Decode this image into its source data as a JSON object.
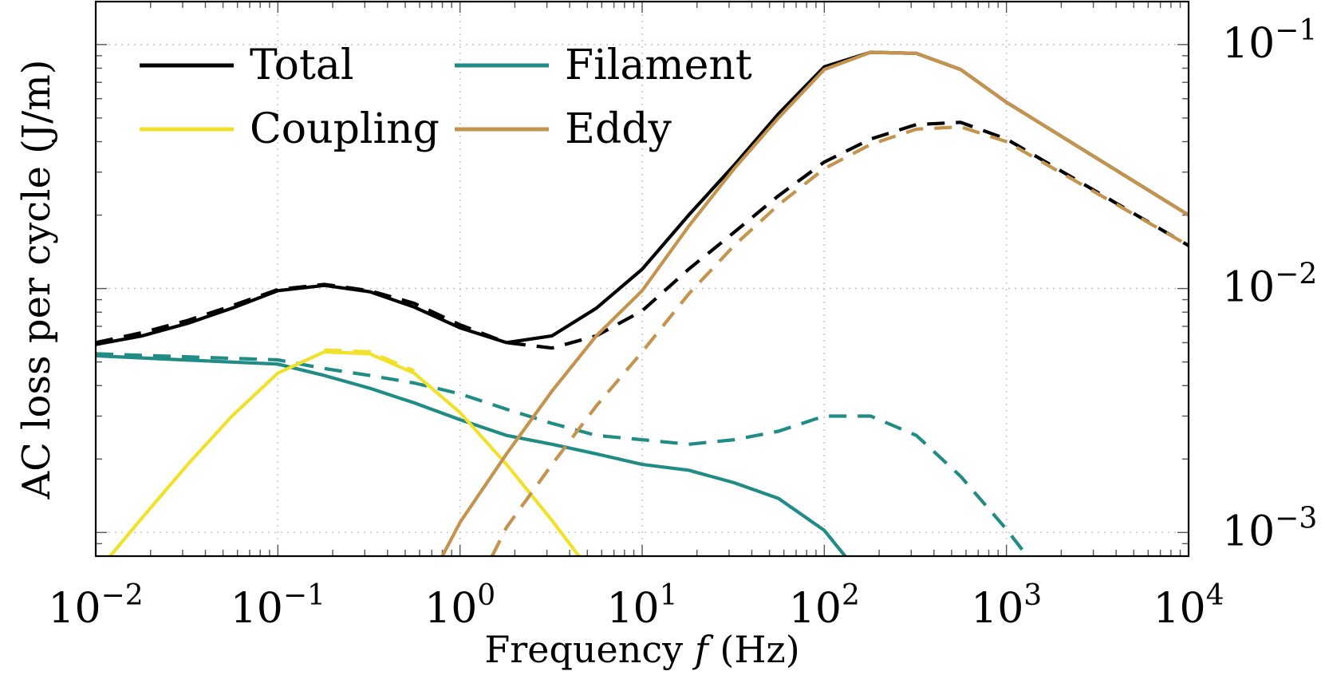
{
  "chart_data": {
    "type": "line",
    "title": "",
    "xlabel": "Frequency f (Hz)",
    "xlabel_parts": {
      "before": "Frequency ",
      "var": "f",
      "after": " (Hz)"
    },
    "ylabel": "AC loss per cycle (J/m)",
    "xscale": "log",
    "yscale": "log",
    "xlim": [
      0.01,
      10000
    ],
    "ylim": [
      0.0008,
      0.15
    ],
    "x_ticks": [
      {
        "value": 0.01,
        "base": "10",
        "exp": "−2"
      },
      {
        "value": 0.1,
        "base": "10",
        "exp": "−1"
      },
      {
        "value": 1,
        "base": "10",
        "exp": "0"
      },
      {
        "value": 10,
        "base": "10",
        "exp": "1"
      },
      {
        "value": 100,
        "base": "10",
        "exp": "2"
      },
      {
        "value": 1000,
        "base": "10",
        "exp": "3"
      },
      {
        "value": 10000,
        "base": "10",
        "exp": "4"
      }
    ],
    "y_ticks": [
      {
        "value": 0.1,
        "base": "10",
        "exp": "−1"
      },
      {
        "value": 0.01,
        "base": "10",
        "exp": "−2"
      },
      {
        "value": 0.001,
        "base": "10",
        "exp": "−3"
      }
    ],
    "y_axis_side": "right",
    "grid": true,
    "legend_position": "top-left",
    "legend": [
      {
        "label": "Total",
        "color": "#000000"
      },
      {
        "label": "Filament",
        "color": "#218c85"
      },
      {
        "label": "Coupling",
        "color": "#f2e12b"
      },
      {
        "label": "Eddy",
        "color": "#c4944f"
      }
    ],
    "series": [
      {
        "name": "Total",
        "style": "solid",
        "color": "#000000",
        "x": [
          0.01,
          0.018,
          0.032,
          0.056,
          0.1,
          0.18,
          0.32,
          0.56,
          1,
          1.8,
          3.2,
          5.6,
          10,
          18,
          32,
          56,
          100,
          180,
          320,
          560,
          1000,
          10000
        ],
        "y": [
          0.0059,
          0.0064,
          0.0072,
          0.0083,
          0.0098,
          0.0103,
          0.0097,
          0.0084,
          0.0069,
          0.006,
          0.0064,
          0.0083,
          0.012,
          0.02,
          0.032,
          0.052,
          0.081,
          0.093,
          0.092,
          0.079,
          0.058,
          0.02
        ]
      },
      {
        "name": "Total",
        "style": "dashed",
        "color": "#000000",
        "x": [
          0.01,
          0.018,
          0.032,
          0.056,
          0.1,
          0.18,
          0.32,
          0.56,
          1,
          1.8,
          3.2,
          5.6,
          10,
          18,
          32,
          56,
          100,
          180,
          320,
          560,
          1000,
          10000
        ],
        "y": [
          0.006,
          0.0066,
          0.0074,
          0.0085,
          0.0099,
          0.0104,
          0.0098,
          0.0087,
          0.0071,
          0.006,
          0.0057,
          0.0064,
          0.0081,
          0.012,
          0.017,
          0.024,
          0.033,
          0.041,
          0.047,
          0.048,
          0.041,
          0.015
        ]
      },
      {
        "name": "Filament",
        "style": "solid",
        "color": "#218c85",
        "x": [
          0.01,
          0.03,
          0.1,
          0.18,
          0.32,
          0.56,
          1,
          1.8,
          3.2,
          5.6,
          10,
          18,
          32,
          56,
          100,
          130
        ],
        "y": [
          0.0053,
          0.0051,
          0.0049,
          0.0044,
          0.0039,
          0.0034,
          0.0029,
          0.0025,
          0.0023,
          0.0021,
          0.0019,
          0.0018,
          0.0016,
          0.00138,
          0.00102,
          0.0008
        ]
      },
      {
        "name": "Filament",
        "style": "dashed",
        "color": "#218c85",
        "x": [
          0.01,
          0.1,
          0.18,
          0.32,
          0.56,
          1,
          1.8,
          3.2,
          5.6,
          10,
          18,
          32,
          56,
          100,
          180,
          320,
          560,
          1000,
          1300
        ],
        "y": [
          0.0054,
          0.0051,
          0.0047,
          0.0044,
          0.0041,
          0.0037,
          0.0032,
          0.0028,
          0.0025,
          0.0024,
          0.0023,
          0.0024,
          0.0026,
          0.003,
          0.003,
          0.0025,
          0.0017,
          0.00103,
          0.0008
        ]
      },
      {
        "name": "Coupling",
        "style": "solid",
        "color": "#f2e12b",
        "x": [
          0.012,
          0.018,
          0.032,
          0.056,
          0.1,
          0.18,
          0.32,
          0.56,
          1,
          1.8,
          3.2,
          4.5
        ],
        "y": [
          0.0008,
          0.00115,
          0.0019,
          0.003,
          0.0045,
          0.0055,
          0.0054,
          0.0045,
          0.0031,
          0.0019,
          0.00112,
          0.0008
        ]
      },
      {
        "name": "Coupling",
        "style": "dashed",
        "color": "#f2e12b",
        "x": [
          0.18,
          0.32,
          0.56
        ],
        "y": [
          0.0056,
          0.0055,
          0.0046
        ]
      },
      {
        "name": "Eddy",
        "style": "solid",
        "color": "#c4944f",
        "x": [
          0.8,
          1,
          1.8,
          3.2,
          5.6,
          10,
          18,
          32,
          56,
          100,
          180,
          320,
          560,
          1000,
          10000
        ],
        "y": [
          0.0008,
          0.0011,
          0.0021,
          0.0038,
          0.0064,
          0.0098,
          0.018,
          0.031,
          0.05,
          0.079,
          0.093,
          0.092,
          0.079,
          0.058,
          0.02
        ]
      },
      {
        "name": "Eddy",
        "style": "dashed",
        "color": "#c4944f",
        "x": [
          1.5,
          1.8,
          3.2,
          5.6,
          10,
          18,
          32,
          56,
          100,
          180,
          320,
          560,
          1000,
          10000
        ],
        "y": [
          0.0008,
          0.00105,
          0.0019,
          0.0033,
          0.0055,
          0.0095,
          0.015,
          0.022,
          0.031,
          0.039,
          0.045,
          0.046,
          0.04,
          0.015
        ]
      }
    ]
  }
}
